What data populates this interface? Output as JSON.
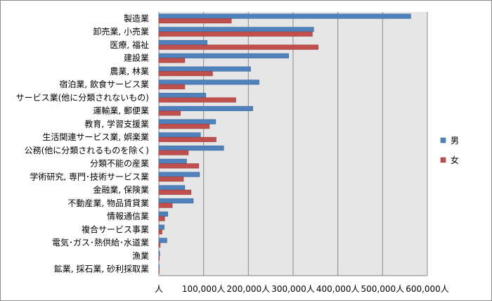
{
  "chart_data": {
    "type": "bar",
    "orientation": "horizontal",
    "categories": [
      "製造業",
      "卸売業, 小売業",
      "医療, 福祉",
      "建設業",
      "農業, 林業",
      "宿泊業, 飲食サービス業",
      "サービス業(他に分類されないもの)",
      "運輸業, 郵便業",
      "教育, 学習支援業",
      "生活関連サービス業, 娯楽業",
      "公務(他に分類されるものを除く)",
      "分類不能の産業",
      "学術研究, 専門･技術サービス業",
      "金融業, 保険業",
      "不動産業, 物品賃貸業",
      "情報通信業",
      "複合サービス事業",
      "電気･ガス･熱供給･水道業",
      "漁業",
      "鉱業, 採石業, 砂利採取業"
    ],
    "series": [
      {
        "name": "男",
        "color": "#4f81bd",
        "values": [
          563000,
          346000,
          108000,
          290000,
          205000,
          224000,
          105000,
          210000,
          127000,
          93000,
          145000,
          62000,
          91000,
          58000,
          77000,
          20000,
          12000,
          18000,
          2000,
          1000
        ]
      },
      {
        "name": "女",
        "color": "#c0504d",
        "values": [
          162000,
          343000,
          356000,
          58000,
          120000,
          58000,
          172000,
          48000,
          113000,
          128000,
          66000,
          89000,
          55000,
          72000,
          30000,
          13000,
          7000,
          3000,
          1000,
          500
        ]
      }
    ],
    "xlim": [
      0,
      600000
    ],
    "xticks": [
      "人",
      "100,000人",
      "200,000人",
      "300,000人",
      "400,000人",
      "500,000人",
      "600,000人"
    ],
    "grid": true,
    "legend": "right"
  }
}
